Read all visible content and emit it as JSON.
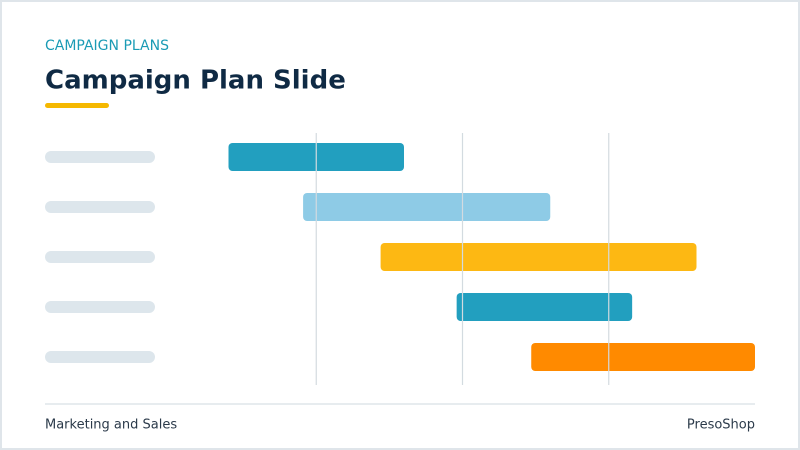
{
  "header": {
    "kicker": "CAMPAIGN PLANS",
    "title": "Campaign Plan Slide"
  },
  "chart_data": {
    "type": "gantt",
    "tasks": [
      {
        "start": 0.4,
        "end": 1.6,
        "color": "#229fbf"
      },
      {
        "start": 0.91,
        "end": 2.6,
        "color": "#8ecbe6"
      },
      {
        "start": 1.44,
        "end": 3.6,
        "color": "#fdb813"
      },
      {
        "start": 1.96,
        "end": 3.16,
        "color": "#229fbf"
      },
      {
        "start": 2.47,
        "end": 4,
        "color": "#ff8a00"
      }
    ],
    "xlim": [
      0,
      4
    ],
    "xticks": [
      1,
      2,
      3
    ],
    "grid": true
  },
  "footer": {
    "left": "Marketing and Sales",
    "right": "PresoShop"
  }
}
